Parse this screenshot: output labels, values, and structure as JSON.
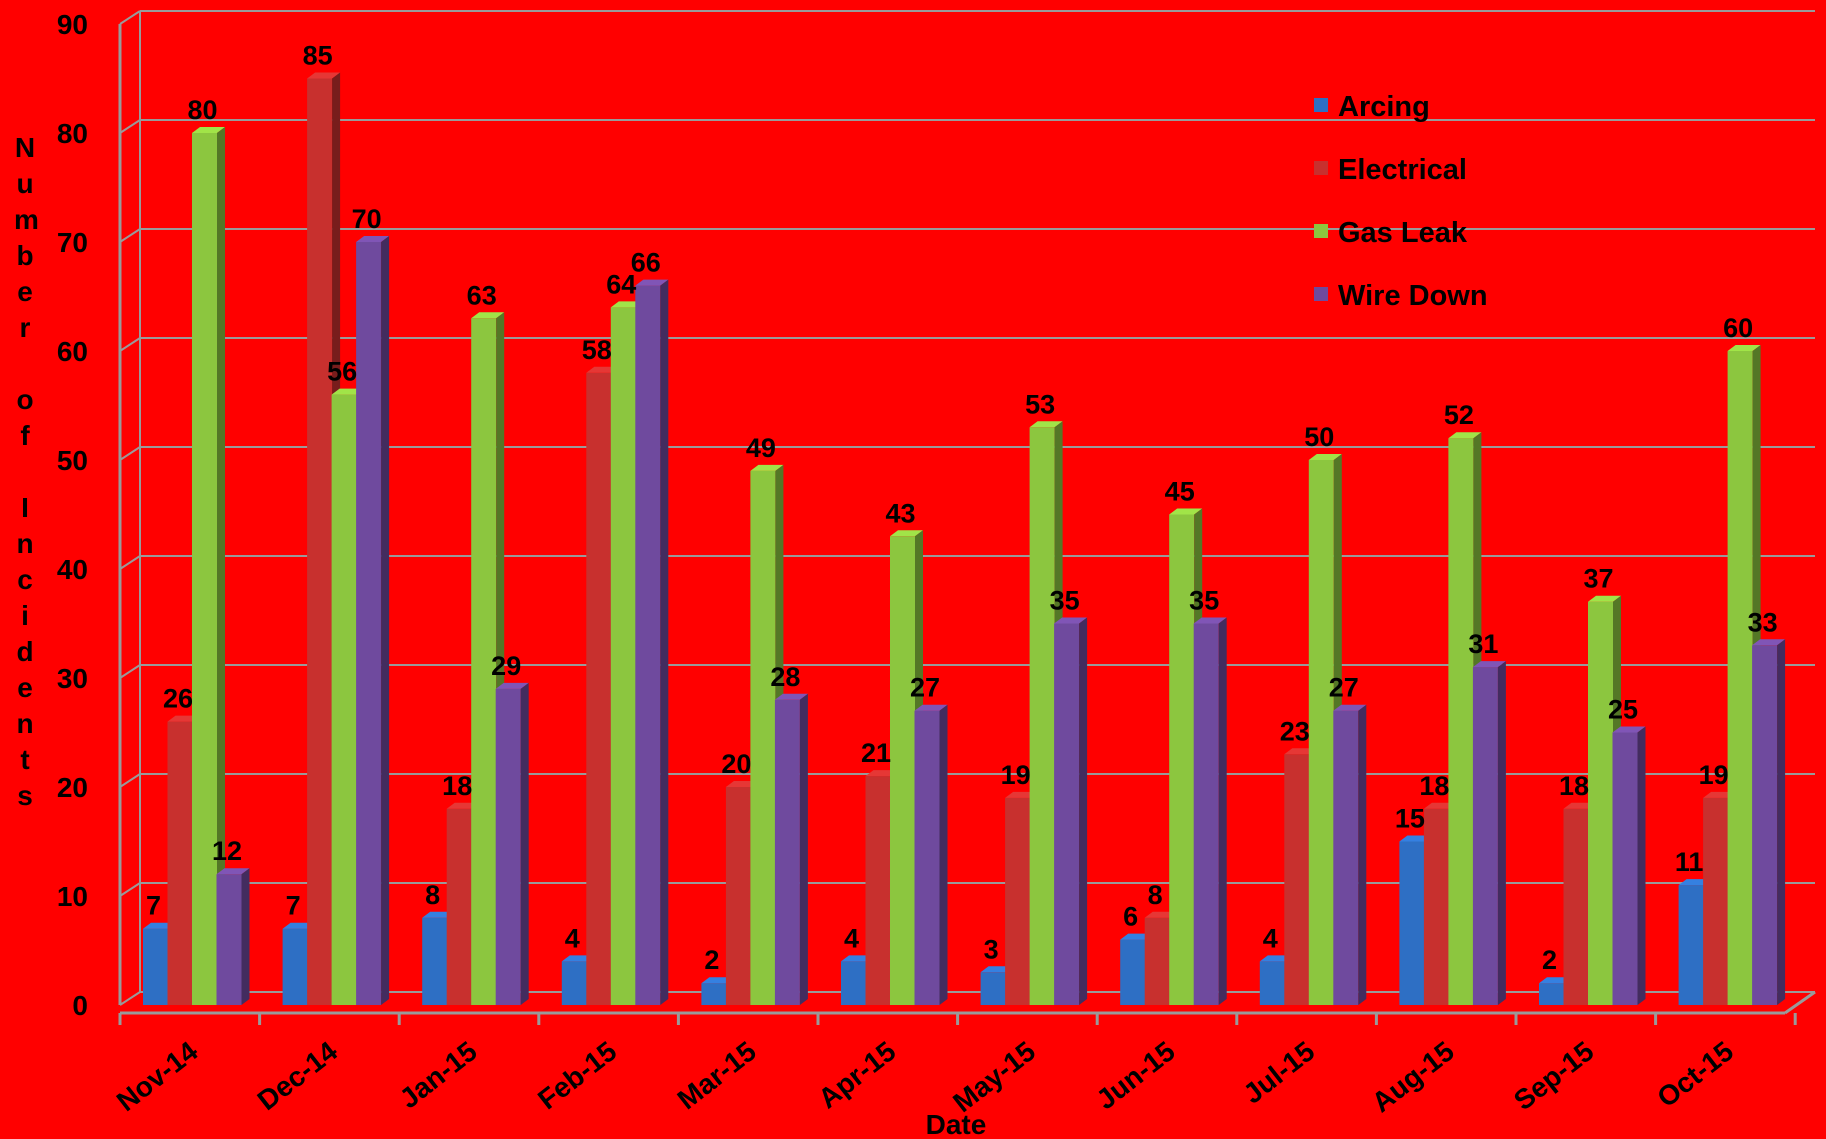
{
  "chart_data": {
    "type": "bar",
    "xlabel": "Date",
    "ylabel": "Number of Incidents",
    "ylim": [
      0,
      90
    ],
    "yticks": [
      0,
      10,
      20,
      30,
      40,
      50,
      60,
      70,
      80,
      90
    ],
    "grid": true,
    "legend_position": "top-right",
    "background_color": "#ff0000",
    "categories": [
      "Nov-14",
      "Dec-14",
      "Jan-15",
      "Feb-15",
      "Mar-15",
      "Apr-15",
      "May-15",
      "Jun-15",
      "Jul-15",
      "Aug-15",
      "Sep-15",
      "Oct-15"
    ],
    "series": [
      {
        "name": "Arcing",
        "color": "#2e6fc4",
        "values": [
          7,
          7,
          8,
          4,
          2,
          4,
          3,
          6,
          4,
          15,
          2,
          11
        ]
      },
      {
        "name": "Electrical",
        "color": "#c8302e",
        "values": [
          26,
          85,
          18,
          58,
          20,
          21,
          19,
          8,
          23,
          18,
          18,
          19
        ]
      },
      {
        "name": "Gas Leak",
        "color": "#8cc63f",
        "values": [
          80,
          56,
          63,
          64,
          49,
          43,
          53,
          45,
          50,
          52,
          37,
          60
        ]
      },
      {
        "name": "Wire Down",
        "color": "#6f4a9e",
        "values": [
          12,
          70,
          29,
          66,
          28,
          27,
          35,
          35,
          27,
          31,
          25,
          33
        ]
      }
    ]
  }
}
